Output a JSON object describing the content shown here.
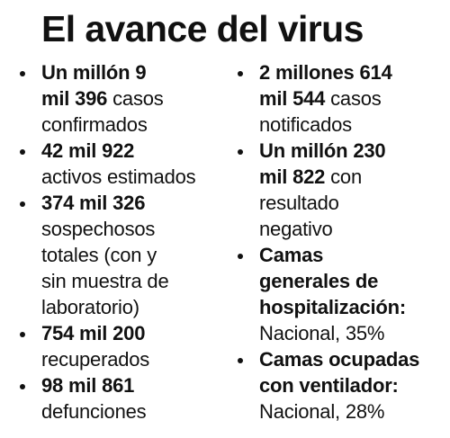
{
  "title": "El avance del virus",
  "left_column": [
    {
      "lines": [
        [
          {
            "text": "Un millón 9",
            "bold": true
          }
        ],
        [
          {
            "text": "mil 396",
            "bold": true
          },
          {
            "text": " casos",
            "bold": false
          }
        ],
        [
          {
            "text": "confirmados",
            "bold": false
          }
        ]
      ]
    },
    {
      "lines": [
        [
          {
            "text": "42 mil 922",
            "bold": true
          }
        ],
        [
          {
            "text": "activos estimados",
            "bold": false
          }
        ]
      ]
    },
    {
      "lines": [
        [
          {
            "text": "374 mil 326",
            "bold": true
          }
        ],
        [
          {
            "text": "sospechosos",
            "bold": false
          }
        ],
        [
          {
            "text": "totales (con y",
            "bold": false
          }
        ],
        [
          {
            "text": "sin muestra de",
            "bold": false
          }
        ],
        [
          {
            "text": "laboratorio)",
            "bold": false
          }
        ]
      ]
    },
    {
      "lines": [
        [
          {
            "text": "754 mil 200",
            "bold": true
          }
        ],
        [
          {
            "text": "recuperados",
            "bold": false
          }
        ]
      ]
    },
    {
      "lines": [
        [
          {
            "text": "98 mil 861",
            "bold": true
          }
        ],
        [
          {
            "text": "defunciones",
            "bold": false
          }
        ]
      ]
    }
  ],
  "right_column": [
    {
      "lines": [
        [
          {
            "text": "2 millones 614",
            "bold": true
          }
        ],
        [
          {
            "text": "mil 544",
            "bold": true
          },
          {
            "text": " casos",
            "bold": false
          }
        ],
        [
          {
            "text": "notificados",
            "bold": false
          }
        ]
      ]
    },
    {
      "lines": [
        [
          {
            "text": "Un millón 230",
            "bold": true
          }
        ],
        [
          {
            "text": "mil 822",
            "bold": true
          },
          {
            "text": " con",
            "bold": false
          }
        ],
        [
          {
            "text": "resultado",
            "bold": false
          }
        ],
        [
          {
            "text": "negativo",
            "bold": false
          }
        ]
      ]
    },
    {
      "lines": [
        [
          {
            "text": "Camas",
            "bold": true
          }
        ],
        [
          {
            "text": "generales de",
            "bold": true
          }
        ],
        [
          {
            "text": "hospitalización:",
            "bold": true
          }
        ],
        [
          {
            "text": "Nacional, 35%",
            "bold": false
          }
        ]
      ]
    },
    {
      "lines": [
        [
          {
            "text": "Camas ocupadas",
            "bold": true
          }
        ],
        [
          {
            "text": "con ventilador:",
            "bold": true
          }
        ],
        [
          {
            "text": "Nacional, 28%",
            "bold": false
          }
        ]
      ]
    }
  ]
}
